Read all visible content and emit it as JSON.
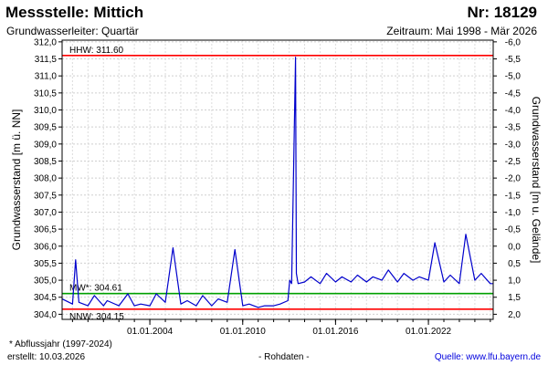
{
  "header": {
    "title": "Messstelle: Mittich",
    "number": "Nr: 18129",
    "subtitle": "Grundwasserleiter: Quartär",
    "period": "Zeitraum: Mai 1998 - Mär 2026"
  },
  "footer": {
    "footnote": "* Abflussjahr (1997-2024)",
    "created": "erstellt:  10.03.2026",
    "raw": "- Rohdaten -",
    "source": "Quelle:  www.lfu.bayern.de"
  },
  "chart_data": {
    "type": "line",
    "ylabel": "Grundwasserstand [m ü. NN]",
    "ylabel_right": "Grundwasserstand [m u. Gelände]",
    "ylim": [
      303.85,
      312.05
    ],
    "y_ticks": [
      "304,0",
      "304,5",
      "305,0",
      "305,5",
      "306,0",
      "306,5",
      "307,0",
      "307,5",
      "308,0",
      "308,5",
      "309,0",
      "309,5",
      "310,0",
      "310,5",
      "311,0",
      "311,5",
      "312,0"
    ],
    "y_ticks_right": [
      "-6,0",
      "-5,5",
      "-5,0",
      "-4,5",
      "-4,0",
      "-3,5",
      "-3,0",
      "-2,5",
      "-2,0",
      "-1,5",
      "-1,0",
      "-0,5",
      "0,0",
      "0,5",
      "1,0",
      "1,5",
      "2,0"
    ],
    "x_ticks": [
      "01.01.2004",
      "01.01.2010",
      "01.01.2016",
      "01.01.2022"
    ],
    "xlim": [
      "1998-05-01",
      "2026-03-10"
    ],
    "grid": true,
    "reference_lines": [
      {
        "label": "HHW: 311.60",
        "value": 311.6,
        "color": "#ff0000"
      },
      {
        "label": "MW*: 304.61",
        "value": 304.61,
        "color": "#00a000"
      },
      {
        "label": "NNW: 304.15",
        "value": 304.15,
        "color": "#ff0000"
      }
    ],
    "series": [
      {
        "color": "#0000cc",
        "x": [
          "1998-05-01",
          "1999-01-01",
          "1999-03-15",
          "1999-06-01",
          "2000-01-01",
          "2000-06-01",
          "2001-01-01",
          "2001-04-01",
          "2002-01-01",
          "2002-08-01",
          "2003-01-01",
          "2003-06-01",
          "2004-01-01",
          "2004-06-01",
          "2005-01-01",
          "2005-07-01",
          "2006-01-01",
          "2006-06-01",
          "2007-01-01",
          "2007-06-01",
          "2008-01-01",
          "2008-06-01",
          "2009-01-01",
          "2009-07-01",
          "2010-01-01",
          "2010-06-01",
          "2011-01-01",
          "2011-06-01",
          "2012-01-01",
          "2012-06-01",
          "2012-12-01",
          "2013-01-15",
          "2013-03-01",
          "2013-06-02",
          "2013-06-20",
          "2013-08-01",
          "2014-01-01",
          "2014-06-01",
          "2015-01-01",
          "2015-06-01",
          "2016-01-01",
          "2016-06-01",
          "2017-01-01",
          "2017-06-01",
          "2018-01-01",
          "2018-06-01",
          "2019-01-01",
          "2019-06-01",
          "2020-01-01",
          "2020-06-01",
          "2021-01-01",
          "2021-06-01",
          "2022-01-01",
          "2022-06-01",
          "2023-01-01",
          "2023-06-01",
          "2024-01-01",
          "2024-06-01",
          "2025-01-01",
          "2025-06-01",
          "2026-01-01",
          "2026-03-10"
        ],
        "values": [
          304.45,
          304.3,
          305.6,
          304.35,
          304.25,
          304.55,
          304.25,
          304.4,
          304.25,
          304.6,
          304.25,
          304.3,
          304.25,
          304.6,
          304.35,
          305.95,
          304.3,
          304.4,
          304.25,
          304.55,
          304.25,
          304.45,
          304.35,
          305.9,
          304.25,
          304.3,
          304.2,
          304.25,
          304.25,
          304.3,
          304.4,
          305.0,
          304.9,
          311.55,
          305.2,
          304.9,
          304.95,
          305.1,
          304.9,
          305.2,
          304.95,
          305.1,
          304.95,
          305.15,
          304.95,
          305.1,
          305.0,
          305.3,
          304.95,
          305.2,
          305.0,
          305.1,
          305.0,
          306.1,
          304.95,
          305.15,
          304.9,
          306.35,
          305.0,
          305.2,
          304.9,
          304.9
        ]
      }
    ]
  }
}
